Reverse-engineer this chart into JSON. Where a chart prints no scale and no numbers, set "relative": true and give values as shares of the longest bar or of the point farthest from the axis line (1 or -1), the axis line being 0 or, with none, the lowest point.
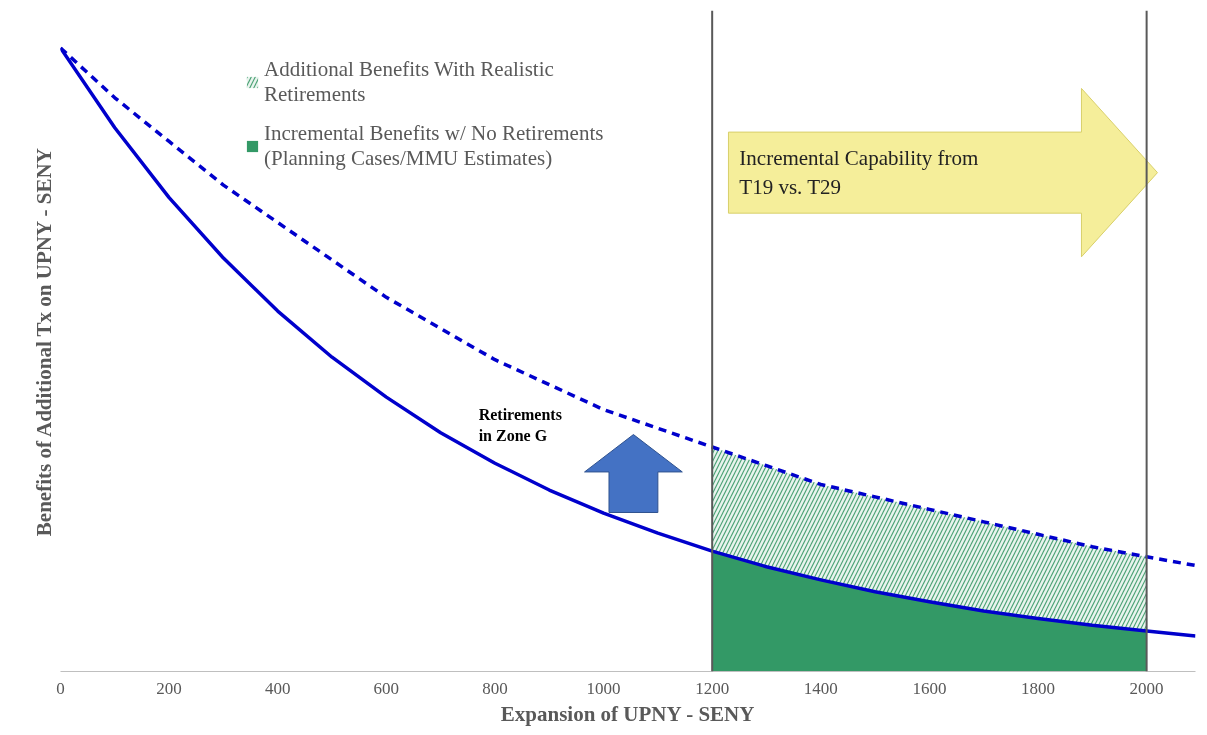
{
  "chart_data": {
    "type": "area",
    "relative": true,
    "xlabel": "Expansion of UPNY - SENY",
    "ylabel": "Benefits of Additional Tx on UPNY - SENY",
    "xlim": [
      0,
      2090
    ],
    "xticks": [
      0,
      200,
      400,
      600,
      800,
      1000,
      1200,
      1400,
      1600,
      1800,
      2000
    ],
    "grid": false,
    "legend": "top left",
    "series": [
      {
        "type": "line",
        "color": "#0000cc",
        "line_style": "solid",
        "x": [
          0,
          100,
          200,
          300,
          400,
          500,
          600,
          700,
          800,
          900,
          1000,
          1100,
          1200,
          1300,
          1400,
          1500,
          1600,
          1700,
          1800,
          1900,
          2000,
          2090
        ],
        "values": [
          1.0,
          0.872,
          0.76,
          0.663,
          0.578,
          0.504,
          0.44,
          0.383,
          0.334,
          0.291,
          0.254,
          0.222,
          0.193,
          0.168,
          0.147,
          0.128,
          0.112,
          0.097,
          0.085,
          0.074,
          0.065,
          0.057
        ]
      },
      {
        "type": "line",
        "color": "#0000cc",
        "line_style": "dashed",
        "x": [
          0,
          100,
          200,
          300,
          400,
          500,
          600,
          700,
          800,
          900,
          1000,
          1100,
          1200,
          1300,
          1400,
          1500,
          1600,
          1700,
          1800,
          1900,
          2000,
          2090
        ],
        "values": [
          1.0,
          0.92,
          0.85,
          0.78,
          0.72,
          0.66,
          0.6,
          0.55,
          0.5,
          0.46,
          0.42,
          0.39,
          0.36,
          0.33,
          0.3,
          0.28,
          0.26,
          0.24,
          0.22,
          0.2,
          0.184,
          0.17
        ]
      },
      {
        "name": "Additional Benefits With Realistic Retirements",
        "color": "#4ea377",
        "x": [
          1200,
          1300,
          1400,
          1500,
          1600,
          1700,
          1800,
          1900,
          2000
        ],
        "values": [
          0.36,
          0.33,
          0.3,
          0.28,
          0.26,
          0.24,
          0.22,
          0.2,
          0.184
        ]
      },
      {
        "name": "Incremental Benefits w/ No Retirements (Planning Cases/MMU Estimates)",
        "color": "#339966",
        "x": [
          1200,
          1300,
          1400,
          1500,
          1600,
          1700,
          1800,
          1900,
          2000
        ],
        "values": [
          0.193,
          0.168,
          0.147,
          0.128,
          0.112,
          0.097,
          0.085,
          0.074,
          0.065
        ]
      }
    ],
    "ref_lines": [
      {
        "axis": "x",
        "value": 1200,
        "color": "#595959"
      },
      {
        "axis": "x",
        "value": 2000,
        "color": "#595959"
      }
    ],
    "annotations": [
      "Retirements in Zone G",
      "Incremental Capability from T19 vs. T29"
    ]
  }
}
